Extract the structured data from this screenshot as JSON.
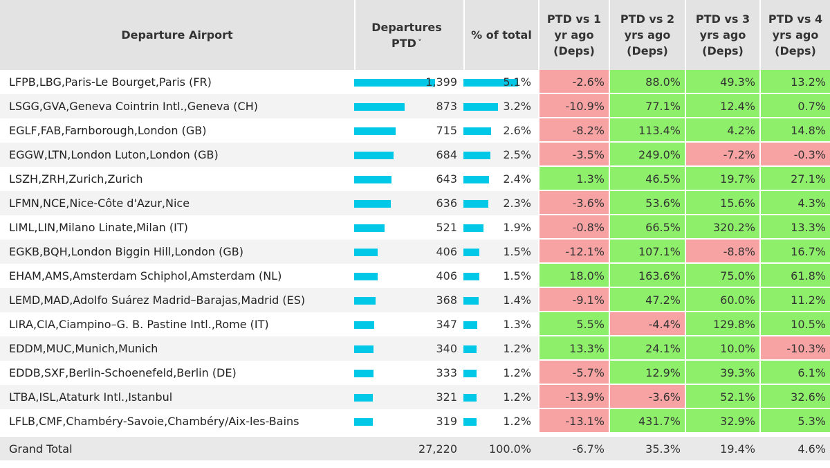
{
  "chart_data": {
    "type": "table",
    "columns": [
      {
        "label": "Departure Airport",
        "has_sort": false
      },
      {
        "label": "Departures PTD",
        "has_sort": true
      },
      {
        "label": "% of total",
        "has_sort": false
      },
      {
        "label": "PTD vs 1 yr ago (Deps)",
        "has_sort": false
      },
      {
        "label": "PTD vs 2 yrs ago (Deps)",
        "has_sort": false
      },
      {
        "label": "PTD vs 3 yrs ago (Deps)",
        "has_sort": false
      },
      {
        "label": "PTD vs 4 yrs ago (Deps)",
        "has_sort": false
      }
    ],
    "sort_icon": "chevron-down-icon",
    "bar_color": "#00c8e6",
    "positive_color": "#8ef06a",
    "negative_color": "#f8a3a3",
    "rows": [
      {
        "airport": "LFPB,LBG,Paris-Le Bourget,Paris (FR)",
        "departures": "1,399",
        "departures_value": 1399,
        "share": "5.1%",
        "share_value": 5.1,
        "vs1": "-2.6%",
        "vs2": "88.0%",
        "vs3": "49.3%",
        "vs4": "13.2%"
      },
      {
        "airport": "LSGG,GVA,Geneva Cointrin Intl.,Geneva (CH)",
        "departures": "873",
        "departures_value": 873,
        "share": "3.2%",
        "share_value": 3.2,
        "vs1": "-10.9%",
        "vs2": "77.1%",
        "vs3": "12.4%",
        "vs4": "0.7%"
      },
      {
        "airport": "EGLF,FAB,Farnborough,London (GB)",
        "departures": "715",
        "departures_value": 715,
        "share": "2.6%",
        "share_value": 2.6,
        "vs1": "-8.2%",
        "vs2": "113.4%",
        "vs3": "4.2%",
        "vs4": "14.8%"
      },
      {
        "airport": "EGGW,LTN,London Luton,London (GB)",
        "departures": "684",
        "departures_value": 684,
        "share": "2.5%",
        "share_value": 2.5,
        "vs1": "-3.5%",
        "vs2": "249.0%",
        "vs3": "-7.2%",
        "vs4": "-0.3%"
      },
      {
        "airport": "LSZH,ZRH,Zurich,Zurich",
        "departures": "643",
        "departures_value": 643,
        "share": "2.4%",
        "share_value": 2.4,
        "vs1": "1.3%",
        "vs2": "46.5%",
        "vs3": "19.7%",
        "vs4": "27.1%"
      },
      {
        "airport": "LFMN,NCE,Nice-Côte d'Azur,Nice",
        "departures": "636",
        "departures_value": 636,
        "share": "2.3%",
        "share_value": 2.3,
        "vs1": "-3.6%",
        "vs2": "53.6%",
        "vs3": "15.6%",
        "vs4": "4.3%"
      },
      {
        "airport": "LIML,LIN,Milano Linate,Milan (IT)",
        "departures": "521",
        "departures_value": 521,
        "share": "1.9%",
        "share_value": 1.9,
        "vs1": "-0.8%",
        "vs2": "66.5%",
        "vs3": "320.2%",
        "vs4": "13.3%"
      },
      {
        "airport": "EGKB,BQH,London Biggin Hill,London (GB)",
        "departures": "406",
        "departures_value": 406,
        "share": "1.5%",
        "share_value": 1.5,
        "vs1": "-12.1%",
        "vs2": "107.1%",
        "vs3": "-8.8%",
        "vs4": "16.7%"
      },
      {
        "airport": "EHAM,AMS,Amsterdam Schiphol,Amsterdam (NL)",
        "departures": "406",
        "departures_value": 406,
        "share": "1.5%",
        "share_value": 1.5,
        "vs1": "18.0%",
        "vs2": "163.6%",
        "vs3": "75.0%",
        "vs4": "61.8%"
      },
      {
        "airport": "LEMD,MAD,Adolfo Suárez Madrid–Barajas,Madrid (ES)",
        "departures": "368",
        "departures_value": 368,
        "share": "1.4%",
        "share_value": 1.4,
        "vs1": "-9.1%",
        "vs2": "47.2%",
        "vs3": "60.0%",
        "vs4": "11.2%"
      },
      {
        "airport": "LIRA,CIA,Ciampino–G. B. Pastine Intl.,Rome (IT)",
        "departures": "347",
        "departures_value": 347,
        "share": "1.3%",
        "share_value": 1.3,
        "vs1": "5.5%",
        "vs2": "-4.4%",
        "vs3": "129.8%",
        "vs4": "10.5%"
      },
      {
        "airport": "EDDM,MUC,Munich,Munich",
        "departures": "340",
        "departures_value": 340,
        "share": "1.2%",
        "share_value": 1.2,
        "vs1": "13.3%",
        "vs2": "24.1%",
        "vs3": "10.0%",
        "vs4": "-10.3%"
      },
      {
        "airport": "EDDB,SXF,Berlin-Schoenefeld,Berlin (DE)",
        "departures": "333",
        "departures_value": 333,
        "share": "1.2%",
        "share_value": 1.2,
        "vs1": "-5.7%",
        "vs2": "12.9%",
        "vs3": "39.3%",
        "vs4": "6.1%"
      },
      {
        "airport": "LTBA,ISL,Ataturk Intl.,Istanbul",
        "departures": "321",
        "departures_value": 321,
        "share": "1.2%",
        "share_value": 1.2,
        "vs1": "-13.9%",
        "vs2": "-3.6%",
        "vs3": "52.1%",
        "vs4": "32.6%"
      },
      {
        "airport": "LFLB,CMF,Chambéry-Savoie,Chambéry/Aix-les-Bains",
        "departures": "319",
        "departures_value": 319,
        "share": "1.2%",
        "share_value": 1.2,
        "vs1": "-13.1%",
        "vs2": "431.7%",
        "vs3": "32.9%",
        "vs4": "5.3%"
      }
    ],
    "grand_total": {
      "label": "Grand Total",
      "departures": "27,220",
      "share": "100.0%",
      "vs1": "-6.7%",
      "vs2": "35.3%",
      "vs3": "19.4%",
      "vs4": "4.6%"
    }
  }
}
